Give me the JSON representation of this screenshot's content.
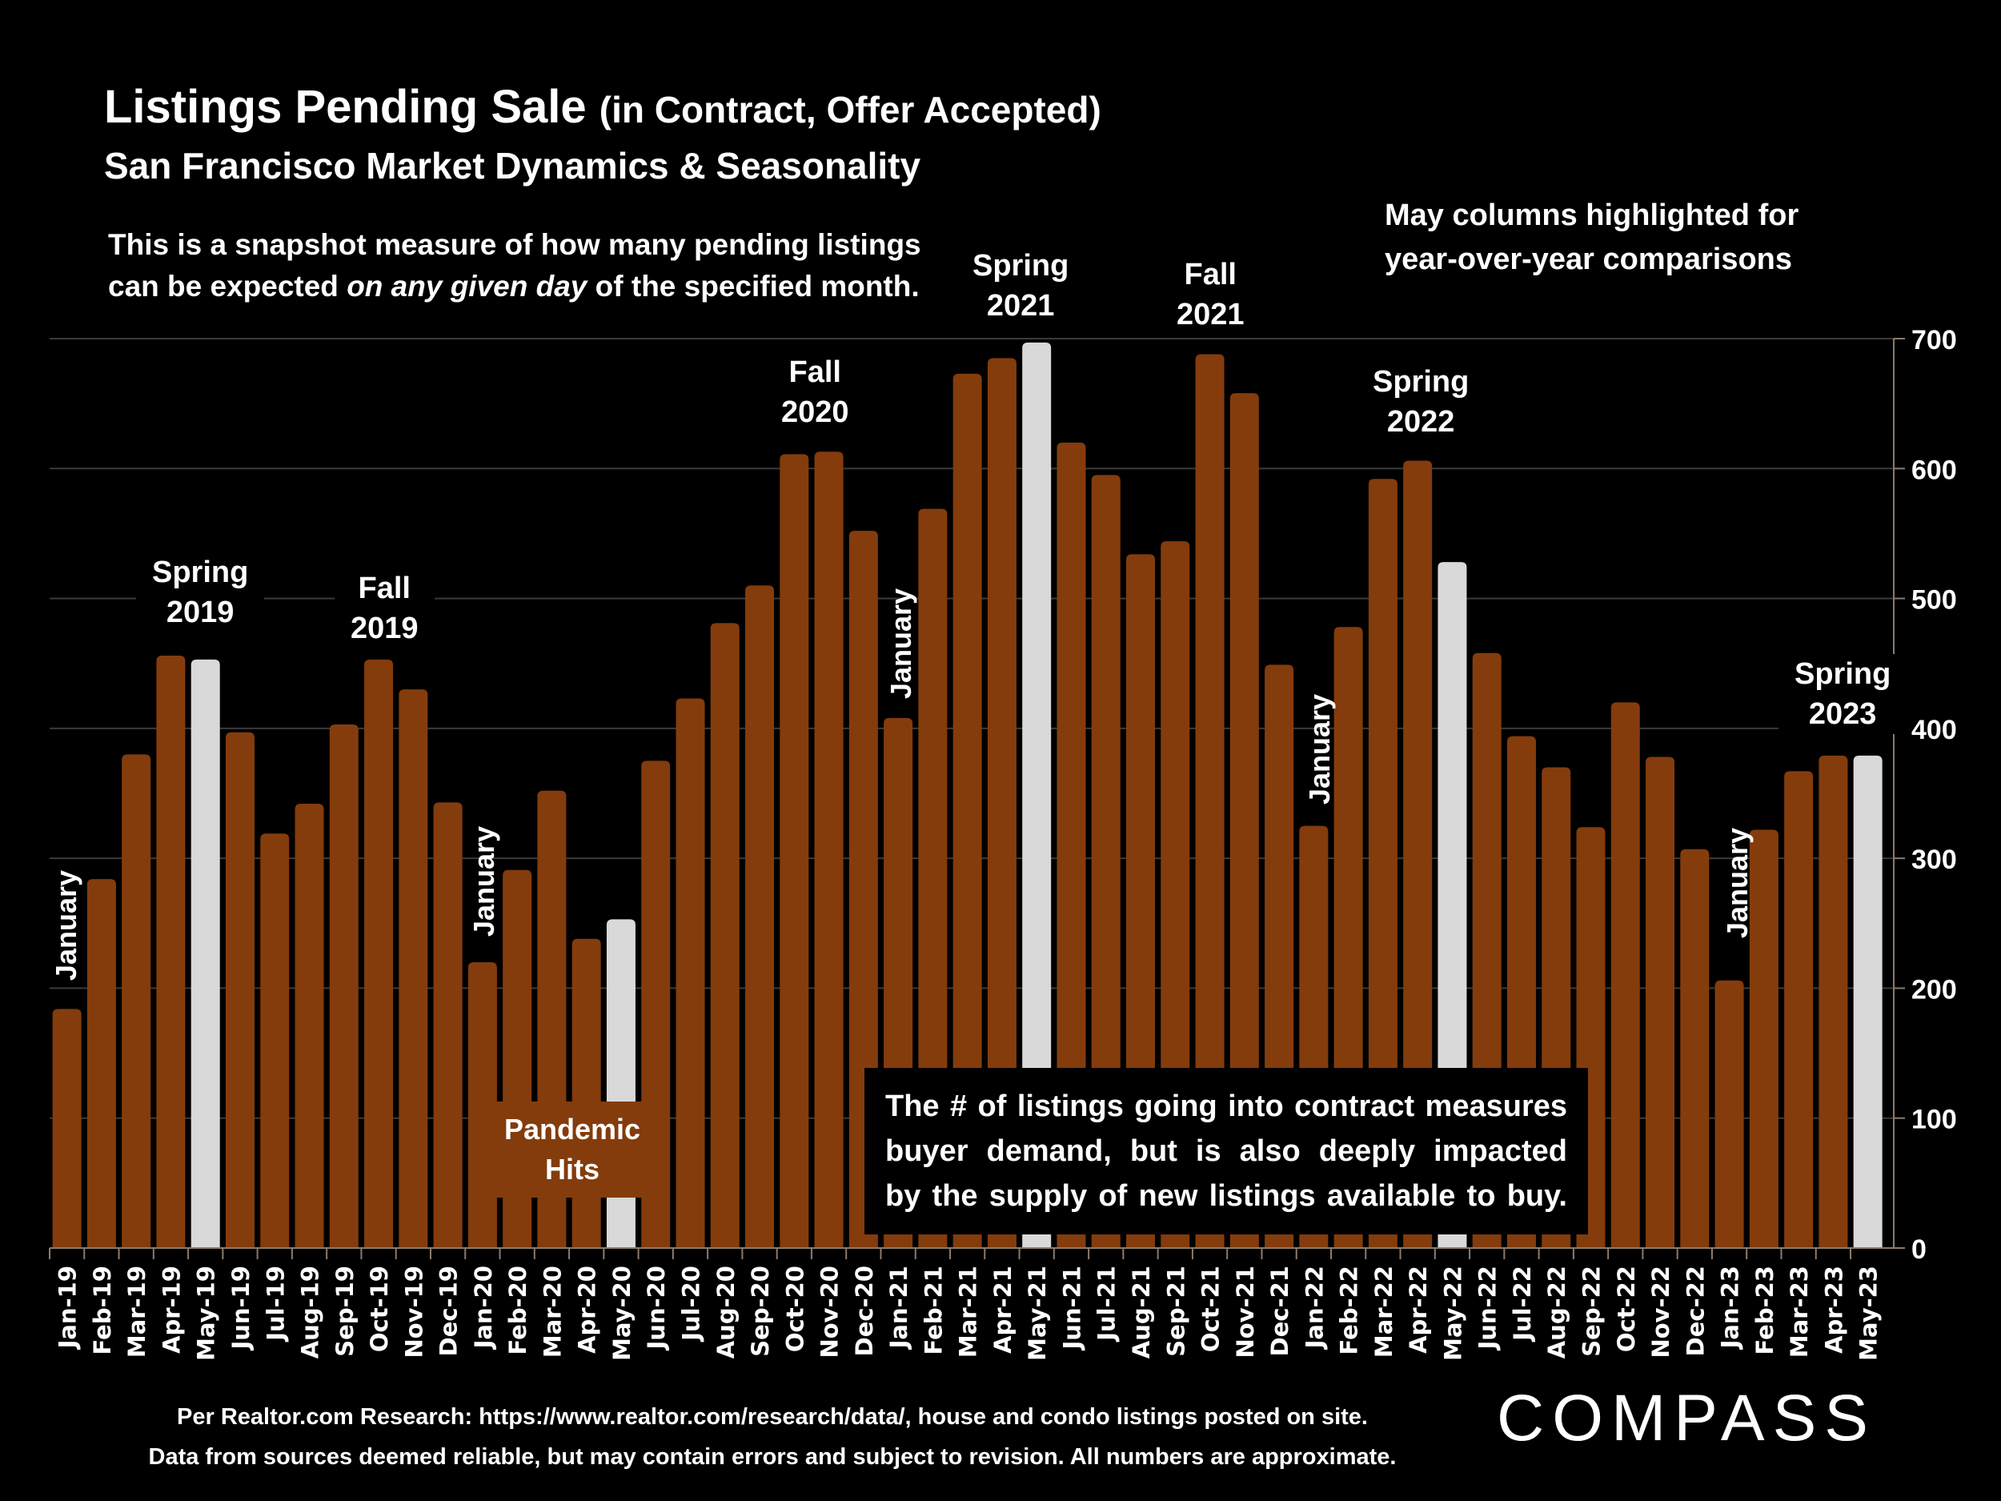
{
  "header": {
    "title_main": "Listings Pending Sale",
    "title_paren": "(in Contract, Offer Accepted)",
    "subtitle": "San Francisco Market Dynamics & Seasonality",
    "note_line1": "This is a snapshot measure of how many pending listings",
    "note_line2_pre": "can be expected ",
    "note_line2_italic": "on any given day",
    "note_line2_post": " of the specified month.",
    "may_note_line1": "May columns highlighted for",
    "may_note_line2": "year-over-year comparisons"
  },
  "annotations": {
    "spring2019": [
      "Spring",
      "2019"
    ],
    "fall2019": [
      "Fall",
      "2019"
    ],
    "fall2020": [
      "Fall",
      "2020"
    ],
    "spring2021": [
      "Spring",
      "2021"
    ],
    "fall2021": [
      "Fall",
      "2021"
    ],
    "spring2022": [
      "Spring",
      "2022"
    ],
    "spring2023": [
      "Spring",
      "2023"
    ],
    "january": "January",
    "pandemic": [
      "Pandemic",
      "Hits"
    ]
  },
  "callout": {
    "line1": "The # of listings going into contract measures",
    "line2": "buyer demand, but is also deeply impacted",
    "line3": "by the supply of new listings available to buy."
  },
  "footer": {
    "line1": "Per Realtor.com Research:  https://www.realtor.com/research/data/, house and condo listings posted on site.",
    "line2": "Data from sources deemed reliable, but may contain errors and subject to revision. All numbers are approximate.",
    "logo": "COMPASS"
  },
  "colors": {
    "bar": "#843c0c",
    "highlight": "#d9d9d9",
    "grid": "#3a3a3a",
    "axis": "#8c7b6b"
  },
  "chart_data": {
    "type": "bar",
    "title": "Listings Pending Sale (in Contract, Offer Accepted)",
    "subtitle": "San Francisco Market Dynamics & Seasonality",
    "xlabel": "",
    "ylabel": "",
    "ylim": [
      0,
      700
    ],
    "yticks": [
      0,
      100,
      200,
      300,
      400,
      500,
      600,
      700
    ],
    "y_axis_position": "right",
    "grid": true,
    "highlight_rule": "May columns highlighted",
    "categories": [
      "Jan-19",
      "Feb-19",
      "Mar-19",
      "Apr-19",
      "May-19",
      "Jun-19",
      "Jul-19",
      "Aug-19",
      "Sep-19",
      "Oct-19",
      "Nov-19",
      "Dec-19",
      "Jan-20",
      "Feb-20",
      "Mar-20",
      "Apr-20",
      "May-20",
      "Jun-20",
      "Jul-20",
      "Aug-20",
      "Sep-20",
      "Oct-20",
      "Nov-20",
      "Dec-20",
      "Jan-21",
      "Feb-21",
      "Mar-21",
      "Apr-21",
      "May-21",
      "Jun-21",
      "Jul-21",
      "Aug-21",
      "Sep-21",
      "Oct-21",
      "Nov-21",
      "Dec-21",
      "Jan-22",
      "Feb-22",
      "Mar-22",
      "Apr-22",
      "May-22",
      "Jun-22",
      "Jul-22",
      "Aug-22",
      "Sep-22",
      "Oct-22",
      "Nov-22",
      "Dec-22",
      "Jan-23",
      "Feb-23",
      "Mar-23",
      "Apr-23",
      "May-23"
    ],
    "values": [
      184,
      284,
      380,
      456,
      453,
      397,
      319,
      342,
      403,
      453,
      430,
      343,
      220,
      291,
      352,
      238,
      253,
      375,
      423,
      481,
      510,
      611,
      613,
      552,
      408,
      569,
      673,
      685,
      697,
      620,
      595,
      534,
      544,
      688,
      658,
      449,
      325,
      478,
      592,
      606,
      528,
      458,
      394,
      370,
      324,
      420,
      378,
      307,
      206,
      322,
      367,
      379,
      379
    ]
  }
}
